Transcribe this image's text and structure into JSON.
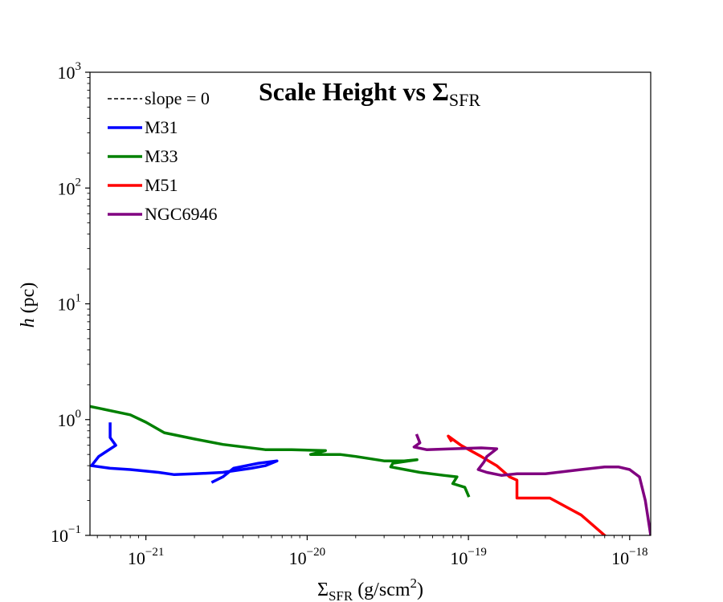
{
  "chart_data": {
    "type": "line",
    "title": {
      "main": "Scale Height vs Σ",
      "sub": "SFR"
    },
    "xlabel": {
      "main": "Σ",
      "sub": "SFR",
      "rest": " (g/scm",
      "sup": "2",
      "close": ")"
    },
    "ylabel": {
      "italic": "h",
      "rest": " (pc)"
    },
    "xscale": "log",
    "yscale": "log",
    "xlim": [
      4.5e-22,
      1.35e-18
    ],
    "ylim": [
      0.1,
      1000
    ],
    "xticks": [
      {
        "value": 1e-21,
        "base": "10",
        "exp": "−21"
      },
      {
        "value": 1e-20,
        "base": "10",
        "exp": "−20"
      },
      {
        "value": 1e-19,
        "base": "10",
        "exp": "−19"
      },
      {
        "value": 1e-18,
        "base": "10",
        "exp": "−18"
      }
    ],
    "yticks": [
      {
        "value": 0.1,
        "base": "10",
        "exp": "−1"
      },
      {
        "value": 1,
        "base": "10",
        "exp": "0"
      },
      {
        "value": 10,
        "base": "10",
        "exp": "1"
      },
      {
        "value": 100,
        "base": "10",
        "exp": "2"
      },
      {
        "value": 1000,
        "base": "10",
        "exp": "3"
      }
    ],
    "grid": false,
    "legend_position": "top-left",
    "series": [
      {
        "name": "slope = 0",
        "color": "#000000",
        "dashed": true,
        "x": [],
        "y": []
      },
      {
        "name": "M31",
        "color": "#0000ff",
        "dashed": false,
        "x": [
          6e-22,
          6e-22,
          6.5e-22,
          5.1e-22,
          4.6e-22,
          6e-22,
          8e-22,
          1.2e-21,
          1.5e-21,
          2e-21,
          3e-21,
          4.5e-21,
          5.5e-21,
          6.5e-21,
          5e-21,
          3.5e-21,
          3e-21,
          2.6e-21
        ],
        "y": [
          0.92,
          0.7,
          0.6,
          0.48,
          0.4,
          0.38,
          0.37,
          0.35,
          0.335,
          0.34,
          0.35,
          0.38,
          0.4,
          0.44,
          0.42,
          0.38,
          0.32,
          0.29
        ]
      },
      {
        "name": "M33",
        "color": "#008000",
        "dashed": false,
        "x": [
          4.5e-22,
          8e-22,
          1e-21,
          1.3e-21,
          2e-21,
          3e-21,
          5.5e-21,
          8e-21,
          1.3e-20,
          1.05e-20,
          1.6e-20,
          2e-20,
          3e-20,
          4e-20,
          4.8e-20,
          3.4e-20,
          3.3e-20,
          5e-20,
          7e-20,
          8.5e-20,
          8e-20,
          9.5e-20,
          1e-19
        ],
        "y": [
          1.3,
          1.1,
          0.95,
          0.77,
          0.68,
          0.61,
          0.55,
          0.55,
          0.54,
          0.5,
          0.5,
          0.48,
          0.44,
          0.44,
          0.45,
          0.42,
          0.39,
          0.35,
          0.33,
          0.32,
          0.28,
          0.26,
          0.22
        ]
      },
      {
        "name": "M51",
        "color": "#ff0000",
        "dashed": false,
        "x": [
          7.8e-20,
          7.5e-20,
          9e-20,
          1.2e-19,
          1.5e-19,
          1.8e-19,
          2e-19,
          2e-19,
          3.2e-19,
          5e-19,
          7e-19
        ],
        "y": [
          0.66,
          0.72,
          0.6,
          0.48,
          0.4,
          0.32,
          0.3,
          0.21,
          0.21,
          0.15,
          0.1
        ]
      },
      {
        "name": "NGC6946",
        "color": "#800080",
        "dashed": false,
        "x": [
          4.8e-20,
          5e-20,
          4.6e-20,
          5.5e-20,
          8e-20,
          1.2e-19,
          1.5e-19,
          1.3e-19,
          1.25e-19,
          1.15e-19,
          1.3e-19,
          1.6e-19,
          2e-19,
          3e-19,
          5e-19,
          7e-19,
          8.5e-19,
          1e-18,
          1.15e-18,
          1.25e-18,
          1.35e-18
        ],
        "y": [
          0.73,
          0.63,
          0.58,
          0.55,
          0.56,
          0.57,
          0.56,
          0.48,
          0.43,
          0.37,
          0.35,
          0.33,
          0.34,
          0.34,
          0.37,
          0.39,
          0.39,
          0.37,
          0.32,
          0.2,
          0.1
        ]
      }
    ]
  }
}
